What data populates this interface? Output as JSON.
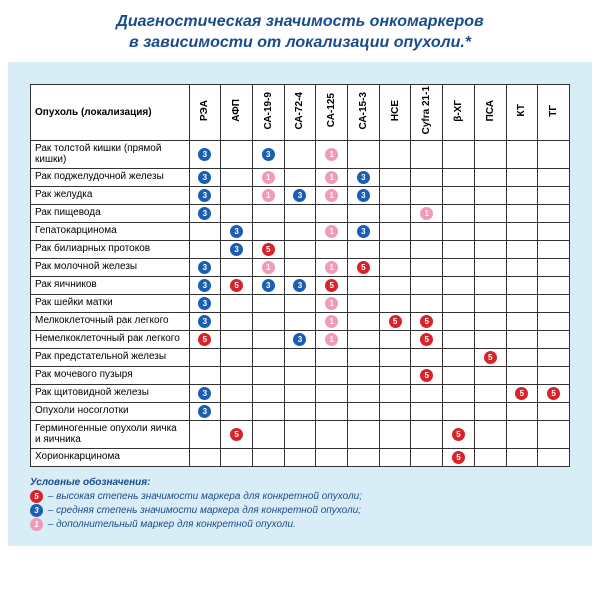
{
  "title_line1": "Диагностическая значимость онкомаркеров",
  "title_line2": "в зависимости от локализации опухоли.*",
  "colors": {
    "high": "#d8232a",
    "med": "#1a5fb4",
    "extra": "#f29bb8",
    "title": "#1a4b8c",
    "panel": "#d9edf7"
  },
  "glyph": {
    "high": "5",
    "med": "3",
    "extra": "1"
  },
  "rowHeader": "Опухоль (локализация)",
  "columns": [
    "РЭА",
    "АФП",
    "СА-19-9",
    "СА-72-4",
    "СА-125",
    "СА-15-3",
    "НСЕ",
    "Cyfra 21-1",
    "β-ХГ",
    "ПСА",
    "КТ",
    "ТГ"
  ],
  "rows": [
    {
      "label": "Рак толстой кишки (прямой кишки)",
      "cells": [
        "med",
        "",
        "med",
        "",
        "extra",
        "",
        "",
        "",
        "",
        "",
        "",
        ""
      ]
    },
    {
      "label": "Рак поджелудочной железы",
      "cells": [
        "med",
        "",
        "extra",
        "",
        "extra",
        "med",
        "",
        "",
        "",
        "",
        "",
        ""
      ]
    },
    {
      "label": "Рак желудка",
      "cells": [
        "med",
        "",
        "extra",
        "med",
        "extra",
        "med",
        "",
        "",
        "",
        "",
        "",
        ""
      ]
    },
    {
      "label": "Рак пищевода",
      "cells": [
        "med",
        "",
        "",
        "",
        "",
        "",
        "",
        "extra",
        "",
        "",
        "",
        ""
      ]
    },
    {
      "label": "Гепатокарцинома",
      "cells": [
        "",
        "med",
        "",
        "",
        "extra",
        "med",
        "",
        "",
        "",
        "",
        "",
        ""
      ]
    },
    {
      "label": "Рак билиарных протоков",
      "cells": [
        "",
        "med",
        "high",
        "",
        "",
        "",
        "",
        "",
        "",
        "",
        "",
        ""
      ]
    },
    {
      "label": "Рак молочной железы",
      "cells": [
        "med",
        "",
        "extra",
        "",
        "extra",
        "high",
        "",
        "",
        "",
        "",
        "",
        ""
      ]
    },
    {
      "label": "Рак яичников",
      "cells": [
        "med",
        "high",
        "med",
        "med",
        "high",
        "",
        "",
        "",
        "",
        "",
        "",
        ""
      ]
    },
    {
      "label": "Рак шейки матки",
      "cells": [
        "med",
        "",
        "",
        "",
        "extra",
        "",
        "",
        "",
        "",
        "",
        "",
        ""
      ]
    },
    {
      "label": "Мелкоклеточный рак легкого",
      "cells": [
        "med",
        "",
        "",
        "",
        "extra",
        "",
        "high",
        "high",
        "",
        "",
        "",
        ""
      ]
    },
    {
      "label": "Немелкоклеточный рак легкого",
      "cells": [
        "high",
        "",
        "",
        "med",
        "extra",
        "",
        "",
        "high",
        "",
        "",
        "",
        ""
      ]
    },
    {
      "label": "Рак предстательной железы",
      "cells": [
        "",
        "",
        "",
        "",
        "",
        "",
        "",
        "",
        "",
        "high",
        "",
        ""
      ]
    },
    {
      "label": "Рак мочевого пузыря",
      "cells": [
        "",
        "",
        "",
        "",
        "",
        "",
        "",
        "high",
        "",
        "",
        "",
        ""
      ]
    },
    {
      "label": "Рак щитовидной железы",
      "cells": [
        "med",
        "",
        "",
        "",
        "",
        "",
        "",
        "",
        "",
        "",
        "high",
        "high"
      ]
    },
    {
      "label": "Опухоли носоглотки",
      "cells": [
        "med",
        "",
        "",
        "",
        "",
        "",
        "",
        "",
        "",
        "",
        "",
        ""
      ]
    },
    {
      "label": "Герминогенные опухоли яичка и яичника",
      "cells": [
        "",
        "high",
        "",
        "",
        "",
        "",
        "",
        "",
        "high",
        "",
        "",
        ""
      ]
    },
    {
      "label": "Хорионкарцинома",
      "cells": [
        "",
        "",
        "",
        "",
        "",
        "",
        "",
        "",
        "high",
        "",
        "",
        ""
      ]
    }
  ],
  "legend": {
    "title": "Условные обозначения:",
    "items": [
      {
        "key": "high",
        "text": "– высокая степень значимости маркера для конкретной опухоли;"
      },
      {
        "key": "med",
        "text": "– средняя степень значимости маркера для конкретной опухоли;"
      },
      {
        "key": "extra",
        "text": "– дополнительный маркер для конкретной опухоли."
      }
    ]
  }
}
